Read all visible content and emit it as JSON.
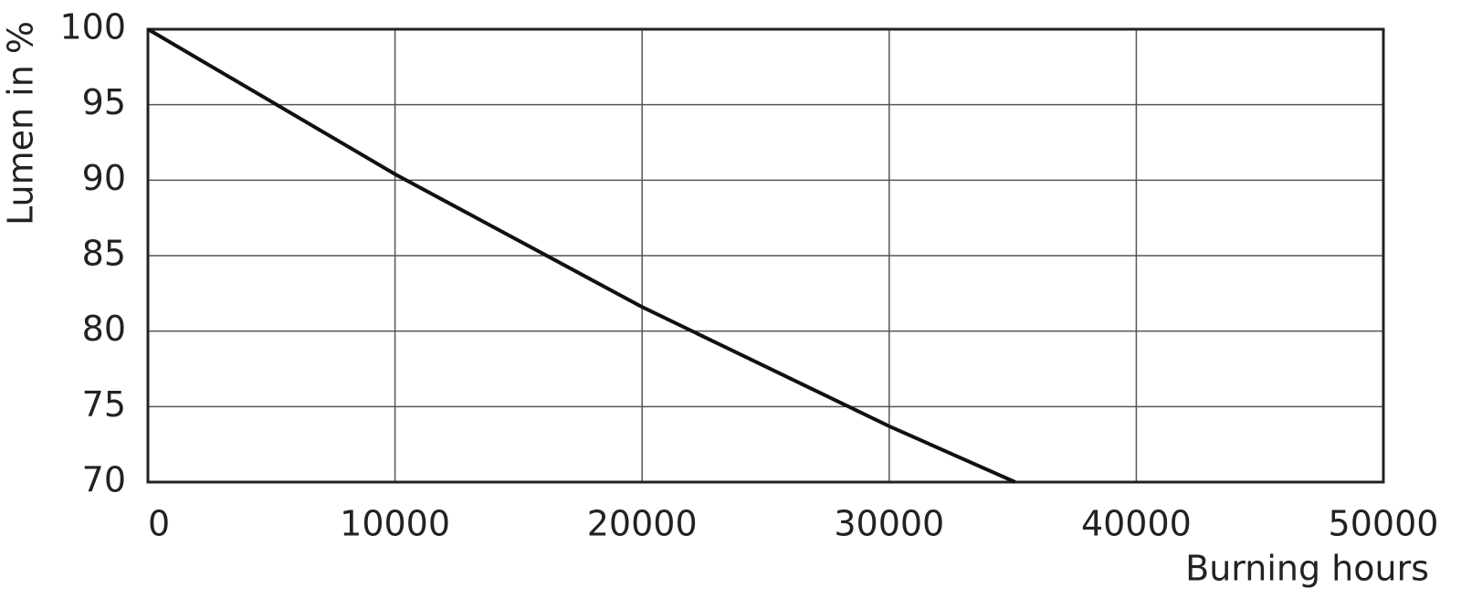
{
  "chart_data": {
    "type": "line",
    "x_label": "Burning hours",
    "y_label": "Lumen in %",
    "x": [
      0,
      10000,
      20000,
      30000,
      35100
    ],
    "series": [
      {
        "color": "#111111",
        "values": [
          100,
          90.4,
          81.6,
          73.7,
          70
        ]
      }
    ],
    "xlim": [
      0,
      50000
    ],
    "xticks": [
      0,
      10000,
      20000,
      30000,
      40000,
      50000
    ],
    "ylim": [
      70,
      100
    ],
    "yticks": [
      70,
      75,
      80,
      85,
      90,
      95,
      100
    ],
    "grid": true
  }
}
